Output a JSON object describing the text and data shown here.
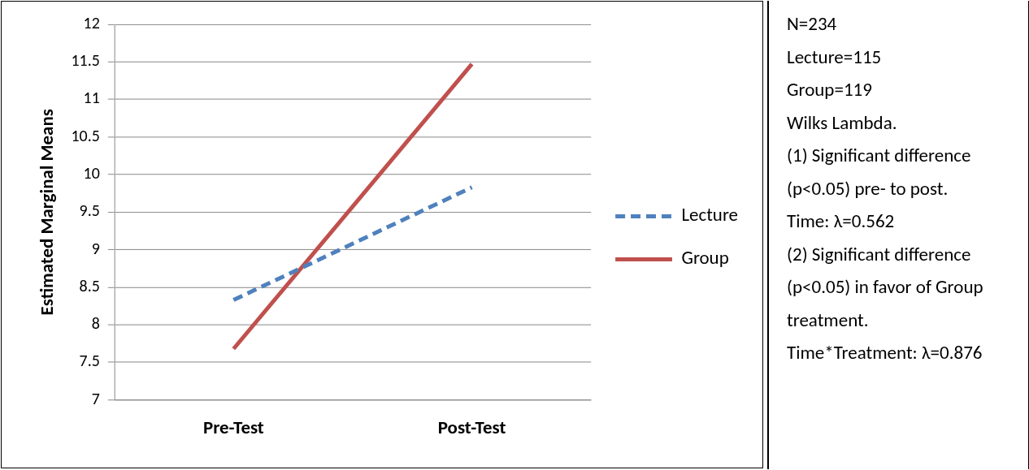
{
  "chart_data": {
    "type": "line",
    "ylabel": "Estimated Marginal Means",
    "categories": [
      "Pre-Test",
      "Post-Test"
    ],
    "series": [
      {
        "name": "Lecture",
        "color": "#4f81bd",
        "values": [
          8.33,
          9.83
        ],
        "line_style": "dashed"
      },
      {
        "name": "Group",
        "color": "#c0504d",
        "values": [
          7.68,
          11.47
        ],
        "line_style": "solid"
      }
    ],
    "ylim": [
      7,
      12
    ],
    "yticks": [
      7,
      7.5,
      8,
      8.5,
      9,
      9.5,
      10,
      10.5,
      11,
      11.5,
      12
    ],
    "grid": "y",
    "legend": "right",
    "marker": "none",
    "annotations": [
      "N=234",
      "Lecture=115",
      "Group=119",
      "Wilks Lambda.",
      "(1) Significant difference (p<0.05) pre- to post.",
      "Time:  λ=0.562",
      "(2) Significant difference (p<0.05) in favor of Group treatment.",
      "Time*Treatment: λ=0.876"
    ]
  }
}
